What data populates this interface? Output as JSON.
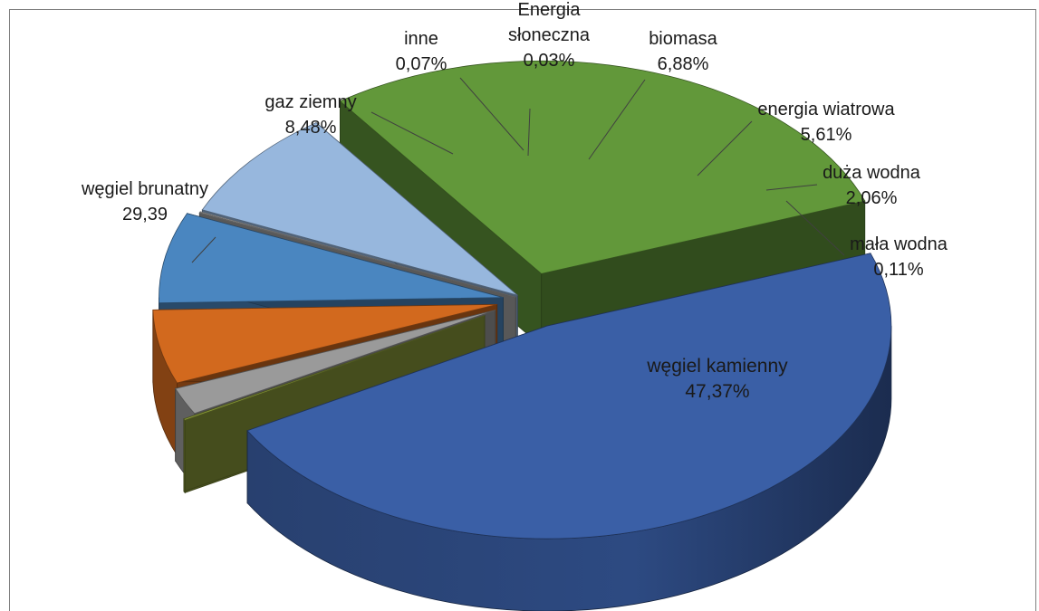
{
  "chart_data": {
    "type": "pie",
    "style": "3d-exploded",
    "legend": "none",
    "slices": [
      {
        "name": "węgiel kamienny",
        "value_label": "47,37%",
        "value": 47.37,
        "color": "#3a5fa6"
      },
      {
        "name": "mała wodna",
        "value_label": "0,11%",
        "value": 0.11,
        "color": "#8a9a3a"
      },
      {
        "name": "duża wodna",
        "value_label": "2,06%",
        "value": 2.06,
        "color": "#9a9a9a"
      },
      {
        "name": "energia wiatrowa",
        "value_label": "5,61%",
        "value": 5.61,
        "color": "#d2691e"
      },
      {
        "name": "biomasa",
        "value_label": "6,88%",
        "value": 6.88,
        "color": "#4a86c0"
      },
      {
        "name": "Energia słoneczna",
        "value_label": "0,03%",
        "value": 0.03,
        "color": "#b0b0b0"
      },
      {
        "name": "inne",
        "value_label": "0,07%",
        "value": 0.07,
        "color": "#cfcfcf"
      },
      {
        "name": "gaz ziemny",
        "value_label": "8,48%",
        "value": 8.48,
        "color": "#97b7dd"
      },
      {
        "name": "węgiel brunatny",
        "value_label": "29,39",
        "value": 29.39,
        "color": "#62983a"
      }
    ]
  }
}
